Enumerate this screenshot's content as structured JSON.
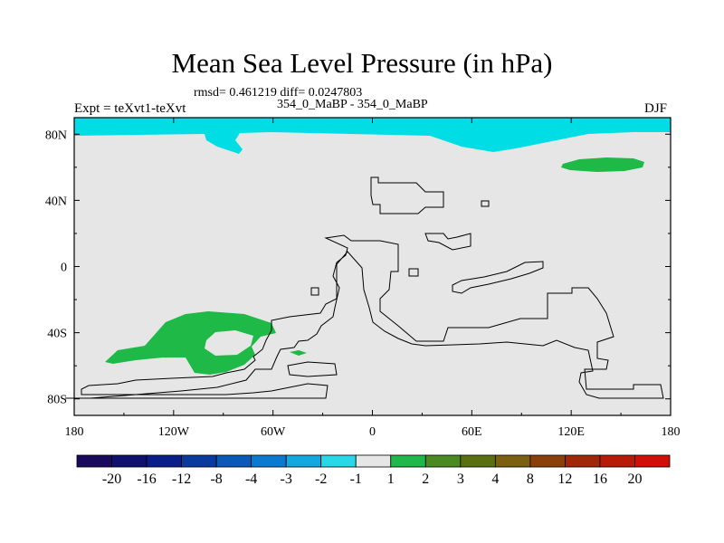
{
  "chart_data": {
    "type": "heatmap",
    "title": "Mean Sea Level Pressure (in hPa)",
    "stats_text": "rmsd= 0.461219 diff= 0.0247803",
    "left_label": "Expt = teXvt1-teXvt",
    "center_label": "354_0_MaBP - 354_0_MaBP",
    "right_label": "DJF",
    "x_axis": {
      "range": [
        -180,
        180
      ],
      "ticks": [
        -180,
        -120,
        -60,
        0,
        60,
        120,
        180
      ],
      "tick_labels": [
        "180",
        "120W",
        "60W",
        "0",
        "60E",
        "120E",
        "180"
      ]
    },
    "y_axis": {
      "range": [
        -90,
        90
      ],
      "ticks": [
        80,
        40,
        0,
        -40,
        -80
      ],
      "tick_labels": [
        "80N",
        "40N",
        "0",
        "40S",
        "80S"
      ]
    },
    "colorbar": {
      "level_labels": [
        "-20",
        "-16",
        "-12",
        "-8",
        "-4",
        "-3",
        "-2",
        "-1",
        "1",
        "2",
        "3",
        "4",
        "8",
        "12",
        "16",
        "20"
      ],
      "colors": [
        "#1a0a5e",
        "#10106e",
        "#0a1e8a",
        "#0a3a9e",
        "#0a58b8",
        "#0a7ad0",
        "#14a8e0",
        "#28d8e6",
        "#e6e6e6",
        "#20b84a",
        "#4a8a20",
        "#5a7010",
        "#7a6010",
        "#8a4008",
        "#a02808",
        "#b81a0a",
        "#d01008"
      ]
    },
    "anomaly_regions": [
      {
        "name": "north-polar-negative-band",
        "value_range": [
          -2,
          -1
        ],
        "color": "#00dde5",
        "lon_extent": [
          -180,
          180
        ],
        "lat_extent": [
          78,
          84
        ]
      },
      {
        "name": "north-pacific-positive-patch",
        "value_range": [
          1,
          2
        ],
        "color": "#1eb946",
        "lon_extent": [
          118,
          163
        ],
        "lat_extent": [
          59,
          66
        ]
      },
      {
        "name": "south-pacific-positive-ring",
        "value_range": [
          1,
          2
        ],
        "color": "#1eb946",
        "lon_extent": [
          -163,
          -62
        ],
        "lat_extent": [
          -66,
          -28
        ]
      }
    ],
    "background_value_range": [
      -1,
      1
    ],
    "background_color": "#e6e6e6"
  }
}
